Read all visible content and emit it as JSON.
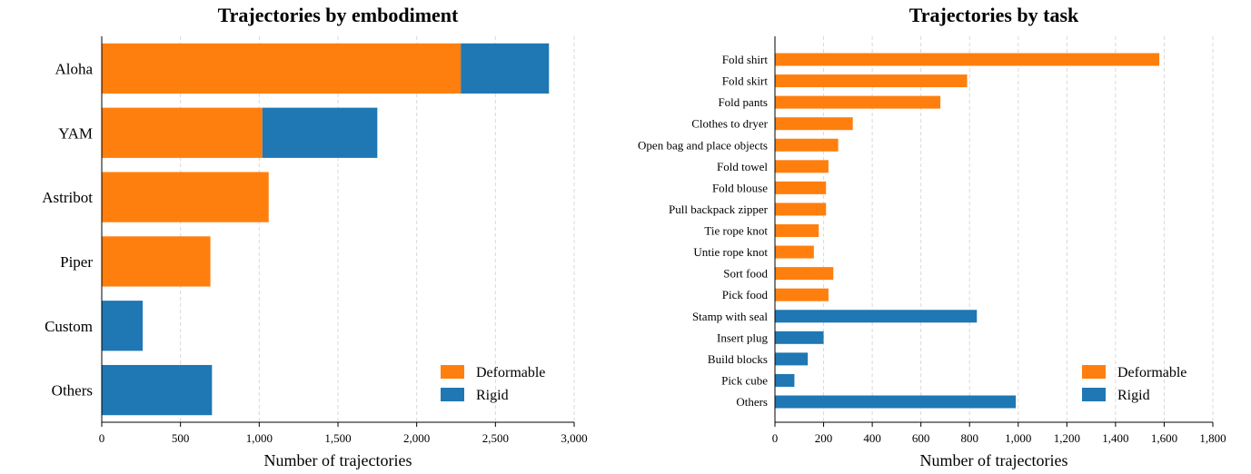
{
  "chart_data": [
    {
      "type": "bar",
      "orientation": "horizontal",
      "stacked": true,
      "title": "Trajectories by embodiment",
      "xlabel": "Number of trajectories",
      "ylabel": "",
      "xlim": [
        0,
        3000
      ],
      "xticks": [
        0,
        500,
        1000,
        1500,
        2000,
        2500,
        3000
      ],
      "xtick_labels": [
        "0",
        "500",
        "1,000",
        "1,500",
        "2,000",
        "2,500",
        "3,000"
      ],
      "categories": [
        "Aloha",
        "YAM",
        "Astribot",
        "Piper",
        "Custom",
        "Others"
      ],
      "series": [
        {
          "name": "Deformable",
          "color": "#ff7f0e",
          "values": [
            2280,
            1020,
            1060,
            690,
            0,
            0
          ]
        },
        {
          "name": "Rigid",
          "color": "#1f77b4",
          "values": [
            560,
            730,
            0,
            0,
            260,
            700
          ]
        }
      ],
      "grid": "vertical dashed",
      "legend_placement": "lower-right"
    },
    {
      "type": "bar",
      "orientation": "horizontal",
      "title": "Trajectories by task",
      "xlabel": "Number of trajectories",
      "ylabel": "",
      "xlim": [
        0,
        1800
      ],
      "xticks": [
        0,
        200,
        400,
        600,
        800,
        1000,
        1200,
        1400,
        1600,
        1800
      ],
      "xtick_labels": [
        "0",
        "200",
        "400",
        "600",
        "800",
        "1,000",
        "1,200",
        "1,400",
        "1,600",
        "1,800"
      ],
      "categories": [
        "Fold shirt",
        "Fold skirt",
        "Fold pants",
        "Clothes to dryer",
        "Open bag and place objects",
        "Fold towel",
        "Fold blouse",
        "Pull backpack zipper",
        "Tie rope knot",
        "Untie rope knot",
        "Sort food",
        "Pick food",
        "Stamp with seal",
        "Insert plug",
        "Build blocks",
        "Pick cube",
        "Others"
      ],
      "values": [
        1580,
        790,
        680,
        320,
        260,
        220,
        210,
        210,
        180,
        160,
        240,
        220,
        830,
        200,
        135,
        80,
        990
      ],
      "groups": [
        "Deformable",
        "Deformable",
        "Deformable",
        "Deformable",
        "Deformable",
        "Deformable",
        "Deformable",
        "Deformable",
        "Deformable",
        "Deformable",
        "Deformable",
        "Deformable",
        "Rigid",
        "Rigid",
        "Rigid",
        "Rigid",
        "Rigid"
      ],
      "series": [
        {
          "name": "Deformable",
          "color": "#ff7f0e"
        },
        {
          "name": "Rigid",
          "color": "#1f77b4"
        }
      ],
      "grid": "vertical dashed",
      "legend_placement": "lower-right"
    }
  ]
}
